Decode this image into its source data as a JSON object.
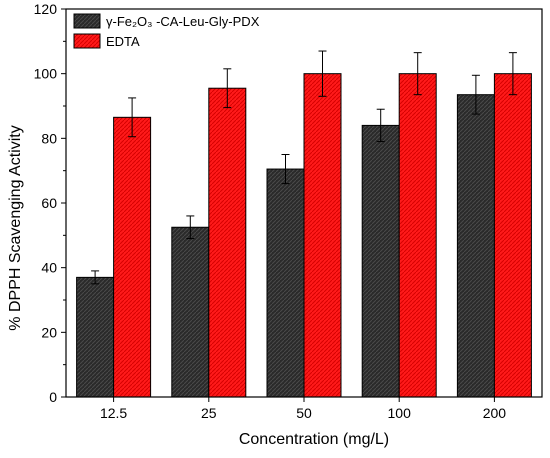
{
  "chart_data": {
    "type": "bar",
    "title": "",
    "xlabel": "Concentration (mg/L)",
    "ylabel": "% DPPH Scavenging Activity",
    "categories": [
      "12.5",
      "25",
      "50",
      "100",
      "200"
    ],
    "ylim": [
      0,
      120
    ],
    "yticks": [
      0,
      20,
      40,
      60,
      80,
      100,
      120
    ],
    "legend_position": "top-left",
    "grid": false,
    "series": [
      {
        "name": "γ-Fe₂O₃ -CA-Leu-Gly-PDX",
        "color": "#2a2a2a",
        "values": [
          37,
          52.5,
          70.5,
          84,
          93.5
        ],
        "errors": [
          2,
          3.5,
          4.5,
          5,
          6
        ]
      },
      {
        "name": "EDTA",
        "color": "#ff1a1a",
        "values": [
          86.5,
          95.5,
          100,
          100,
          100
        ],
        "errors": [
          6,
          6,
          7,
          6.5,
          6.5
        ]
      }
    ]
  }
}
